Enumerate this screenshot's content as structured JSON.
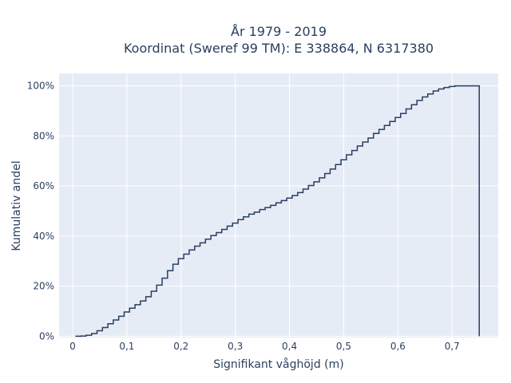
{
  "chart_data": {
    "type": "line",
    "title_line1": "År 1979 - 2019",
    "title_line2": "Koordinat (Sweref 99 TM): E 338864, N 6317380",
    "xlabel": "Signifikant våghöjd (m)",
    "ylabel": "Kumulativ andel",
    "xlim": [
      -0.025,
      0.785
    ],
    "ylim": [
      -0.005,
      1.05
    ],
    "x_ticks": [
      0,
      0.1,
      0.2,
      0.3,
      0.4,
      0.5,
      0.6,
      0.7
    ],
    "x_tick_labels": [
      "0",
      "0,1",
      "0,2",
      "0,3",
      "0,4",
      "0,5",
      "0,6",
      "0,7"
    ],
    "y_ticks": [
      0,
      0.2,
      0.4,
      0.6,
      0.8,
      1.0
    ],
    "y_tick_labels": [
      "0%",
      "20%",
      "40%",
      "60%",
      "80%",
      "100%"
    ],
    "grid": true,
    "line_shape": "step",
    "series": [
      {
        "x": [
          0.005,
          0.015,
          0.025,
          0.035,
          0.045,
          0.055,
          0.065,
          0.075,
          0.085,
          0.095,
          0.105,
          0.115,
          0.125,
          0.135,
          0.145,
          0.155,
          0.165,
          0.175,
          0.185,
          0.195,
          0.205,
          0.215,
          0.225,
          0.235,
          0.245,
          0.255,
          0.265,
          0.275,
          0.285,
          0.295,
          0.305,
          0.315,
          0.325,
          0.335,
          0.345,
          0.355,
          0.365,
          0.375,
          0.385,
          0.395,
          0.405,
          0.415,
          0.425,
          0.435,
          0.445,
          0.455,
          0.465,
          0.475,
          0.485,
          0.495,
          0.505,
          0.515,
          0.525,
          0.535,
          0.545,
          0.555,
          0.565,
          0.575,
          0.585,
          0.595,
          0.605,
          0.615,
          0.625,
          0.635,
          0.645,
          0.655,
          0.665,
          0.675,
          0.685,
          0.695,
          0.705,
          0.715,
          0.725,
          0.735,
          0.745,
          0.75,
          0.75
        ],
        "y": [
          0.0,
          0.001,
          0.004,
          0.011,
          0.022,
          0.035,
          0.05,
          0.065,
          0.08,
          0.097,
          0.112,
          0.126,
          0.141,
          0.158,
          0.18,
          0.204,
          0.232,
          0.262,
          0.288,
          0.31,
          0.328,
          0.345,
          0.36,
          0.373,
          0.388,
          0.402,
          0.414,
          0.427,
          0.44,
          0.452,
          0.466,
          0.477,
          0.488,
          0.496,
          0.506,
          0.514,
          0.523,
          0.533,
          0.542,
          0.552,
          0.562,
          0.574,
          0.588,
          0.602,
          0.617,
          0.633,
          0.65,
          0.668,
          0.686,
          0.705,
          0.725,
          0.742,
          0.76,
          0.776,
          0.792,
          0.81,
          0.826,
          0.842,
          0.858,
          0.874,
          0.89,
          0.908,
          0.925,
          0.942,
          0.956,
          0.968,
          0.98,
          0.988,
          0.994,
          0.998,
          1.0,
          1.0,
          1.0,
          1.0,
          1.0,
          1.0,
          0.0
        ]
      }
    ],
    "colors": {
      "line": "#2a3f5f",
      "plot_bg": "#e5ecf6",
      "grid": "#ffffff",
      "text": "#2a3f5f"
    }
  }
}
